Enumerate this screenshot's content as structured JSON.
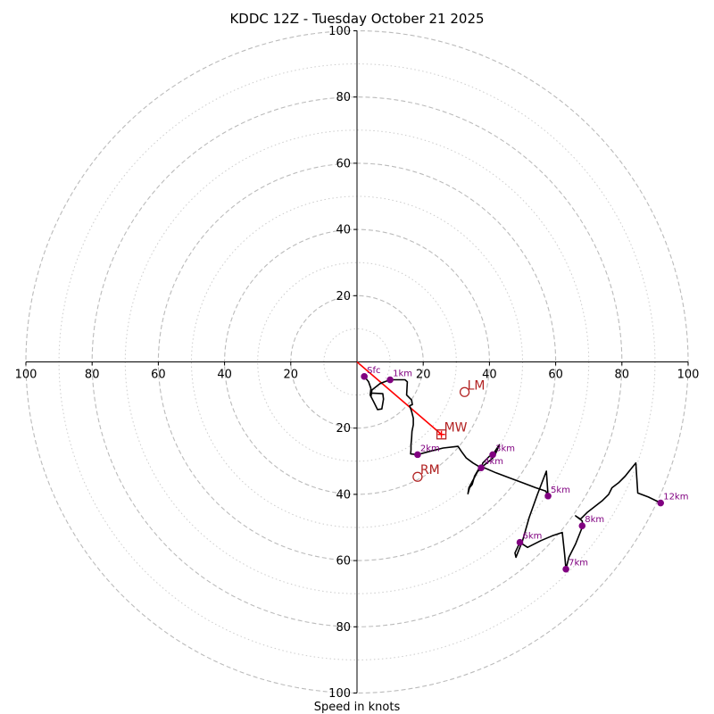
{
  "chart_data": {
    "type": "hodograph",
    "title": "KDDC 12Z - Tuesday October 21 2025",
    "xlabel": "Speed in knots",
    "range": [
      -100,
      100
    ],
    "ring_major": [
      20,
      40,
      60,
      80,
      100
    ],
    "ring_minor": [
      10,
      30,
      50,
      70,
      90
    ],
    "tick_values": [
      20,
      40,
      60,
      80,
      100
    ],
    "tick_labels": {
      "left": [
        "20",
        "40",
        "60",
        "80",
        "100"
      ],
      "right": [
        "20",
        "40",
        "60",
        "80",
        "100"
      ],
      "top": [
        "20",
        "40",
        "60",
        "80",
        "100"
      ],
      "bottom": [
        "20",
        "40",
        "60",
        "80",
        "100"
      ]
    },
    "colors": {
      "trace": "#000000",
      "height_marker": "#800080",
      "motion": "#b22222",
      "mean_wind_line": "#ff0000",
      "grid": "#bbbbbb",
      "grid_minor": "#cccccc"
    },
    "trace": [
      [
        2.2,
        -4.4
      ],
      [
        3.5,
        -6.0
      ],
      [
        4.2,
        -8.0
      ],
      [
        4.0,
        -10.0
      ],
      [
        5.0,
        -12.0
      ],
      [
        6.2,
        -14.4
      ],
      [
        7.5,
        -14.2
      ],
      [
        8.0,
        -11.2
      ],
      [
        7.8,
        -9.6
      ],
      [
        4.4,
        -9.4
      ],
      [
        4.2,
        -10.5
      ],
      [
        4.5,
        -8.5
      ],
      [
        7.0,
        -6.5
      ],
      [
        10.0,
        -5.4
      ],
      [
        14.5,
        -5.4
      ],
      [
        15.2,
        -6.0
      ],
      [
        15.0,
        -10.0
      ],
      [
        16.5,
        -11.5
      ],
      [
        16.7,
        -12.9
      ],
      [
        15.9,
        -13.2
      ],
      [
        16.5,
        -15.0
      ],
      [
        17.0,
        -17.0
      ],
      [
        17.0,
        -19.0
      ],
      [
        16.6,
        -21.0
      ],
      [
        16.5,
        -23.0
      ],
      [
        16.3,
        -25.0
      ],
      [
        16.3,
        -26.5
      ],
      [
        16.2,
        -27.8
      ],
      [
        18.3,
        -28.0
      ],
      [
        22.0,
        -27.0
      ],
      [
        26.0,
        -26.0
      ],
      [
        30.5,
        -25.5
      ],
      [
        31.5,
        -27.0
      ],
      [
        33.0,
        -29.0
      ],
      [
        35.0,
        -30.5
      ],
      [
        37.5,
        -32.0
      ],
      [
        38.0,
        -30.5
      ],
      [
        39.0,
        -29.5
      ],
      [
        40.0,
        -28.5
      ],
      [
        41.0,
        -28.0
      ],
      [
        42.0,
        -26.5
      ],
      [
        43.0,
        -25.0
      ],
      [
        41.5,
        -28.5
      ],
      [
        40.5,
        -29.5
      ],
      [
        38.0,
        -31.5
      ],
      [
        36.8,
        -32.3
      ],
      [
        35.5,
        -34.5
      ],
      [
        34.8,
        -37.0
      ],
      [
        34.0,
        -38.0
      ],
      [
        33.5,
        -39.8
      ],
      [
        33.8,
        -38.0
      ],
      [
        36.5,
        -33.0
      ],
      [
        38.5,
        -32.0
      ],
      [
        42.0,
        -33.5
      ],
      [
        46.0,
        -35.0
      ],
      [
        50.0,
        -36.5
      ],
      [
        54.0,
        -38.0
      ],
      [
        57.0,
        -39.0
      ],
      [
        57.7,
        -40.5
      ],
      [
        57.2,
        -33.0
      ],
      [
        54.5,
        -40.0
      ],
      [
        52.0,
        -47.0
      ],
      [
        50.0,
        -54.0
      ],
      [
        48.0,
        -59.0
      ],
      [
        47.7,
        -57.7
      ],
      [
        49.2,
        -54.5
      ],
      [
        51.5,
        -56.0
      ],
      [
        55.5,
        -54.0
      ],
      [
        59.0,
        -52.5
      ],
      [
        62.0,
        -51.5
      ],
      [
        62.7,
        -58.0
      ],
      [
        63.1,
        -62.6
      ],
      [
        64.0,
        -59.0
      ],
      [
        66.0,
        -55.0
      ],
      [
        68.0,
        -50.0
      ],
      [
        68.2,
        -49.5
      ],
      [
        68.0,
        -48.0
      ],
      [
        66.0,
        -46.5
      ],
      [
        67.5,
        -47.5
      ],
      [
        69.5,
        -45.5
      ],
      [
        74.0,
        -42.0
      ],
      [
        76.0,
        -40.0
      ],
      [
        77.0,
        -38.0
      ],
      [
        79.0,
        -36.5
      ],
      [
        81.0,
        -34.5
      ],
      [
        83.0,
        -32.0
      ],
      [
        84.2,
        -30.5
      ],
      [
        84.8,
        -39.6
      ],
      [
        88.0,
        -40.8
      ],
      [
        91.7,
        -42.6
      ]
    ],
    "height_markers": [
      {
        "label": "Sfc",
        "u": 2.2,
        "v": -4.4
      },
      {
        "label": "1km",
        "u": 10.0,
        "v": -5.4
      },
      {
        "label": "2km",
        "u": 18.3,
        "v": -28.0
      },
      {
        "label": "3km",
        "u": 41.0,
        "v": -28.0
      },
      {
        "label": "4km",
        "u": 37.5,
        "v": -32.0
      },
      {
        "label": "5km",
        "u": 57.7,
        "v": -40.5
      },
      {
        "label": "6km",
        "u": 49.2,
        "v": -54.5
      },
      {
        "label": "7km",
        "u": 63.1,
        "v": -62.6
      },
      {
        "label": "8km",
        "u": 68.0,
        "v": -49.5
      },
      {
        "label": "12km",
        "u": 91.7,
        "v": -42.6
      }
    ],
    "storm_motion": [
      {
        "label": "LM",
        "u": 32.5,
        "v": -9.1,
        "marker": "circle"
      },
      {
        "label": "MW",
        "u": 25.5,
        "v": -21.9,
        "marker": "square"
      },
      {
        "label": "RM",
        "u": 18.3,
        "v": -34.7,
        "marker": "circle"
      }
    ],
    "mean_wind_line": {
      "from": [
        0,
        0
      ],
      "to": [
        25.5,
        -21.9
      ]
    }
  }
}
